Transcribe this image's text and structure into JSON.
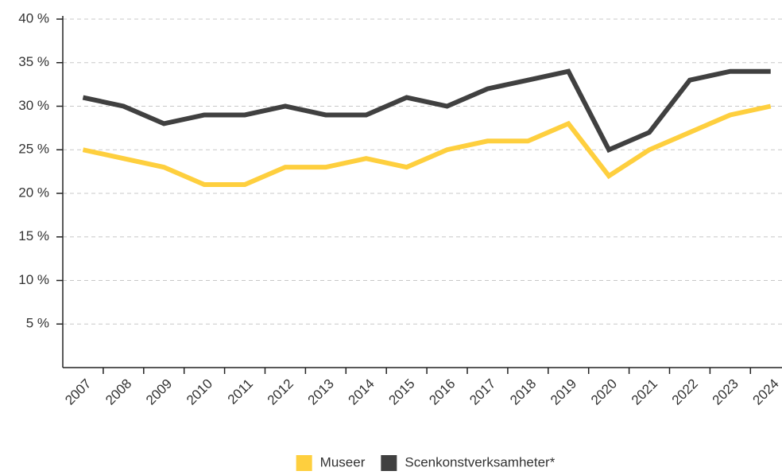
{
  "chart_data": {
    "type": "line",
    "categories": [
      "2007",
      "2008",
      "2009",
      "2010",
      "2011",
      "2012",
      "2013",
      "2014",
      "2015",
      "2016",
      "2017",
      "2018",
      "2019",
      "2020",
      "2021",
      "2022",
      "2023",
      "2024"
    ],
    "series": [
      {
        "name": "Museer",
        "color": "#fecf3e",
        "values": [
          25,
          24,
          23,
          21,
          21,
          23,
          23,
          24,
          23,
          25,
          26,
          26,
          28,
          22,
          25,
          27,
          29,
          30
        ]
      },
      {
        "name": "Scenkonstverksamheter*",
        "color": "#404040",
        "values": [
          31,
          30,
          28,
          29,
          29,
          30,
          29,
          29,
          31,
          30,
          32,
          33,
          34,
          25,
          27,
          33,
          34,
          34
        ]
      }
    ],
    "ylim": [
      0,
      40
    ],
    "yticks": [
      {
        "value": 5,
        "label": "5 %"
      },
      {
        "value": 10,
        "label": "10 %"
      },
      {
        "value": 15,
        "label": "15 %"
      },
      {
        "value": 20,
        "label": "20 %"
      },
      {
        "value": 25,
        "label": "25 %"
      },
      {
        "value": 30,
        "label": "30 %"
      },
      {
        "value": 35,
        "label": "35 %"
      },
      {
        "value": 40,
        "label": "40 %"
      }
    ],
    "grid": true,
    "legend": "bottom"
  }
}
